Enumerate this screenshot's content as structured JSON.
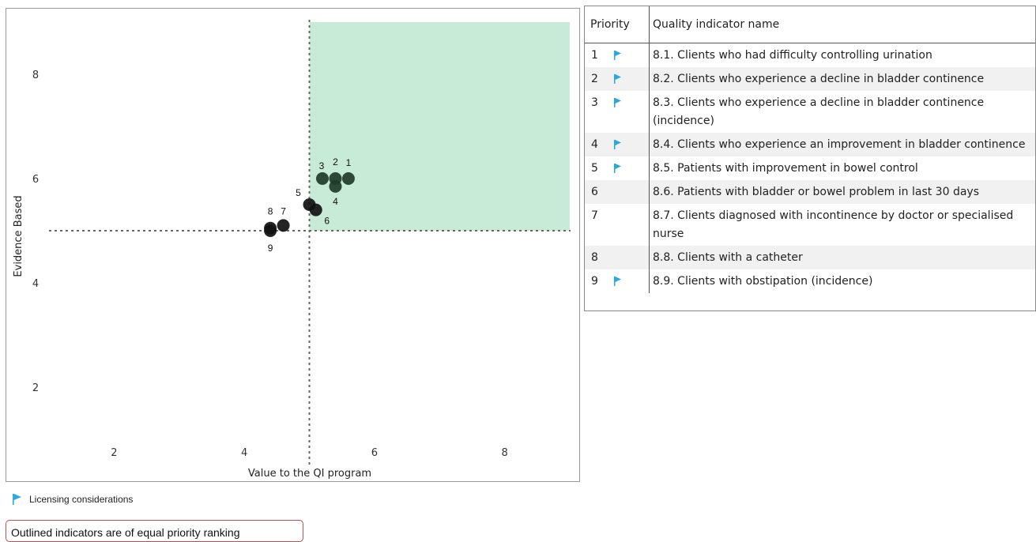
{
  "colors": {
    "highlight_fill": "#c8ebd8",
    "point_dark_green": "#1e3b2a",
    "point_black": "#111111",
    "flag_blue": "#29a8e0",
    "note_border": "#c0504d"
  },
  "chart_data": {
    "type": "scatter",
    "xlabel": "Value to the QI program",
    "ylabel": "Evidence Based",
    "xlim": [
      1,
      9
    ],
    "ylim": [
      1,
      9
    ],
    "xticks": [
      2,
      4,
      6,
      8
    ],
    "yticks": [
      2,
      4,
      6,
      8
    ],
    "threshold_x": 5,
    "threshold_y": 5,
    "highlight_region": {
      "x": [
        5,
        9
      ],
      "y": [
        5,
        9
      ]
    },
    "points": [
      {
        "label": "1",
        "x": 5.6,
        "y": 6.0,
        "color": "dark-green"
      },
      {
        "label": "2",
        "x": 5.4,
        "y": 6.0,
        "color": "dark-green"
      },
      {
        "label": "3",
        "x": 5.2,
        "y": 6.0,
        "color": "dark-green"
      },
      {
        "label": "4",
        "x": 5.4,
        "y": 5.85,
        "color": "dark-green"
      },
      {
        "label": "5",
        "x": 5.0,
        "y": 5.5,
        "color": "black"
      },
      {
        "label": "6",
        "x": 5.1,
        "y": 5.4,
        "color": "black"
      },
      {
        "label": "7",
        "x": 4.6,
        "y": 5.1,
        "color": "black"
      },
      {
        "label": "8",
        "x": 4.4,
        "y": 5.05,
        "color": "black"
      },
      {
        "label": "9",
        "x": 4.4,
        "y": 5.0,
        "color": "black"
      }
    ]
  },
  "legend": {
    "flag_label": "Licensing considerations",
    "flag_icon": "flag-icon"
  },
  "note": "Outlined indicators are of equal priority ranking",
  "table": {
    "headers": [
      "Priority",
      "Quality indicator name"
    ],
    "rows": [
      {
        "rank": "1",
        "flag": true,
        "name": "8.1. Clients who had difficulty controlling urination"
      },
      {
        "rank": "2",
        "flag": true,
        "name": "8.2. Clients who experience a decline in bladder continence"
      },
      {
        "rank": "3",
        "flag": true,
        "name": "8.3. Clients who experience a decline in bladder continence (incidence)"
      },
      {
        "rank": "4",
        "flag": true,
        "name": "8.4. Clients who experience an improvement in bladder continence"
      },
      {
        "rank": "5",
        "flag": true,
        "name": "8.5. Patients with improvement in bowel control"
      },
      {
        "rank": "6",
        "flag": false,
        "name": "8.6. Patients with bladder or bowel problem in last 30 days"
      },
      {
        "rank": "7",
        "flag": false,
        "name": "8.7. Clients diagnosed with incontinence by doctor or specialised nurse"
      },
      {
        "rank": "8",
        "flag": false,
        "name": "8.8. Clients with a catheter"
      },
      {
        "rank": "9",
        "flag": true,
        "name": "8.9. Clients with obstipation (incidence)"
      }
    ]
  }
}
